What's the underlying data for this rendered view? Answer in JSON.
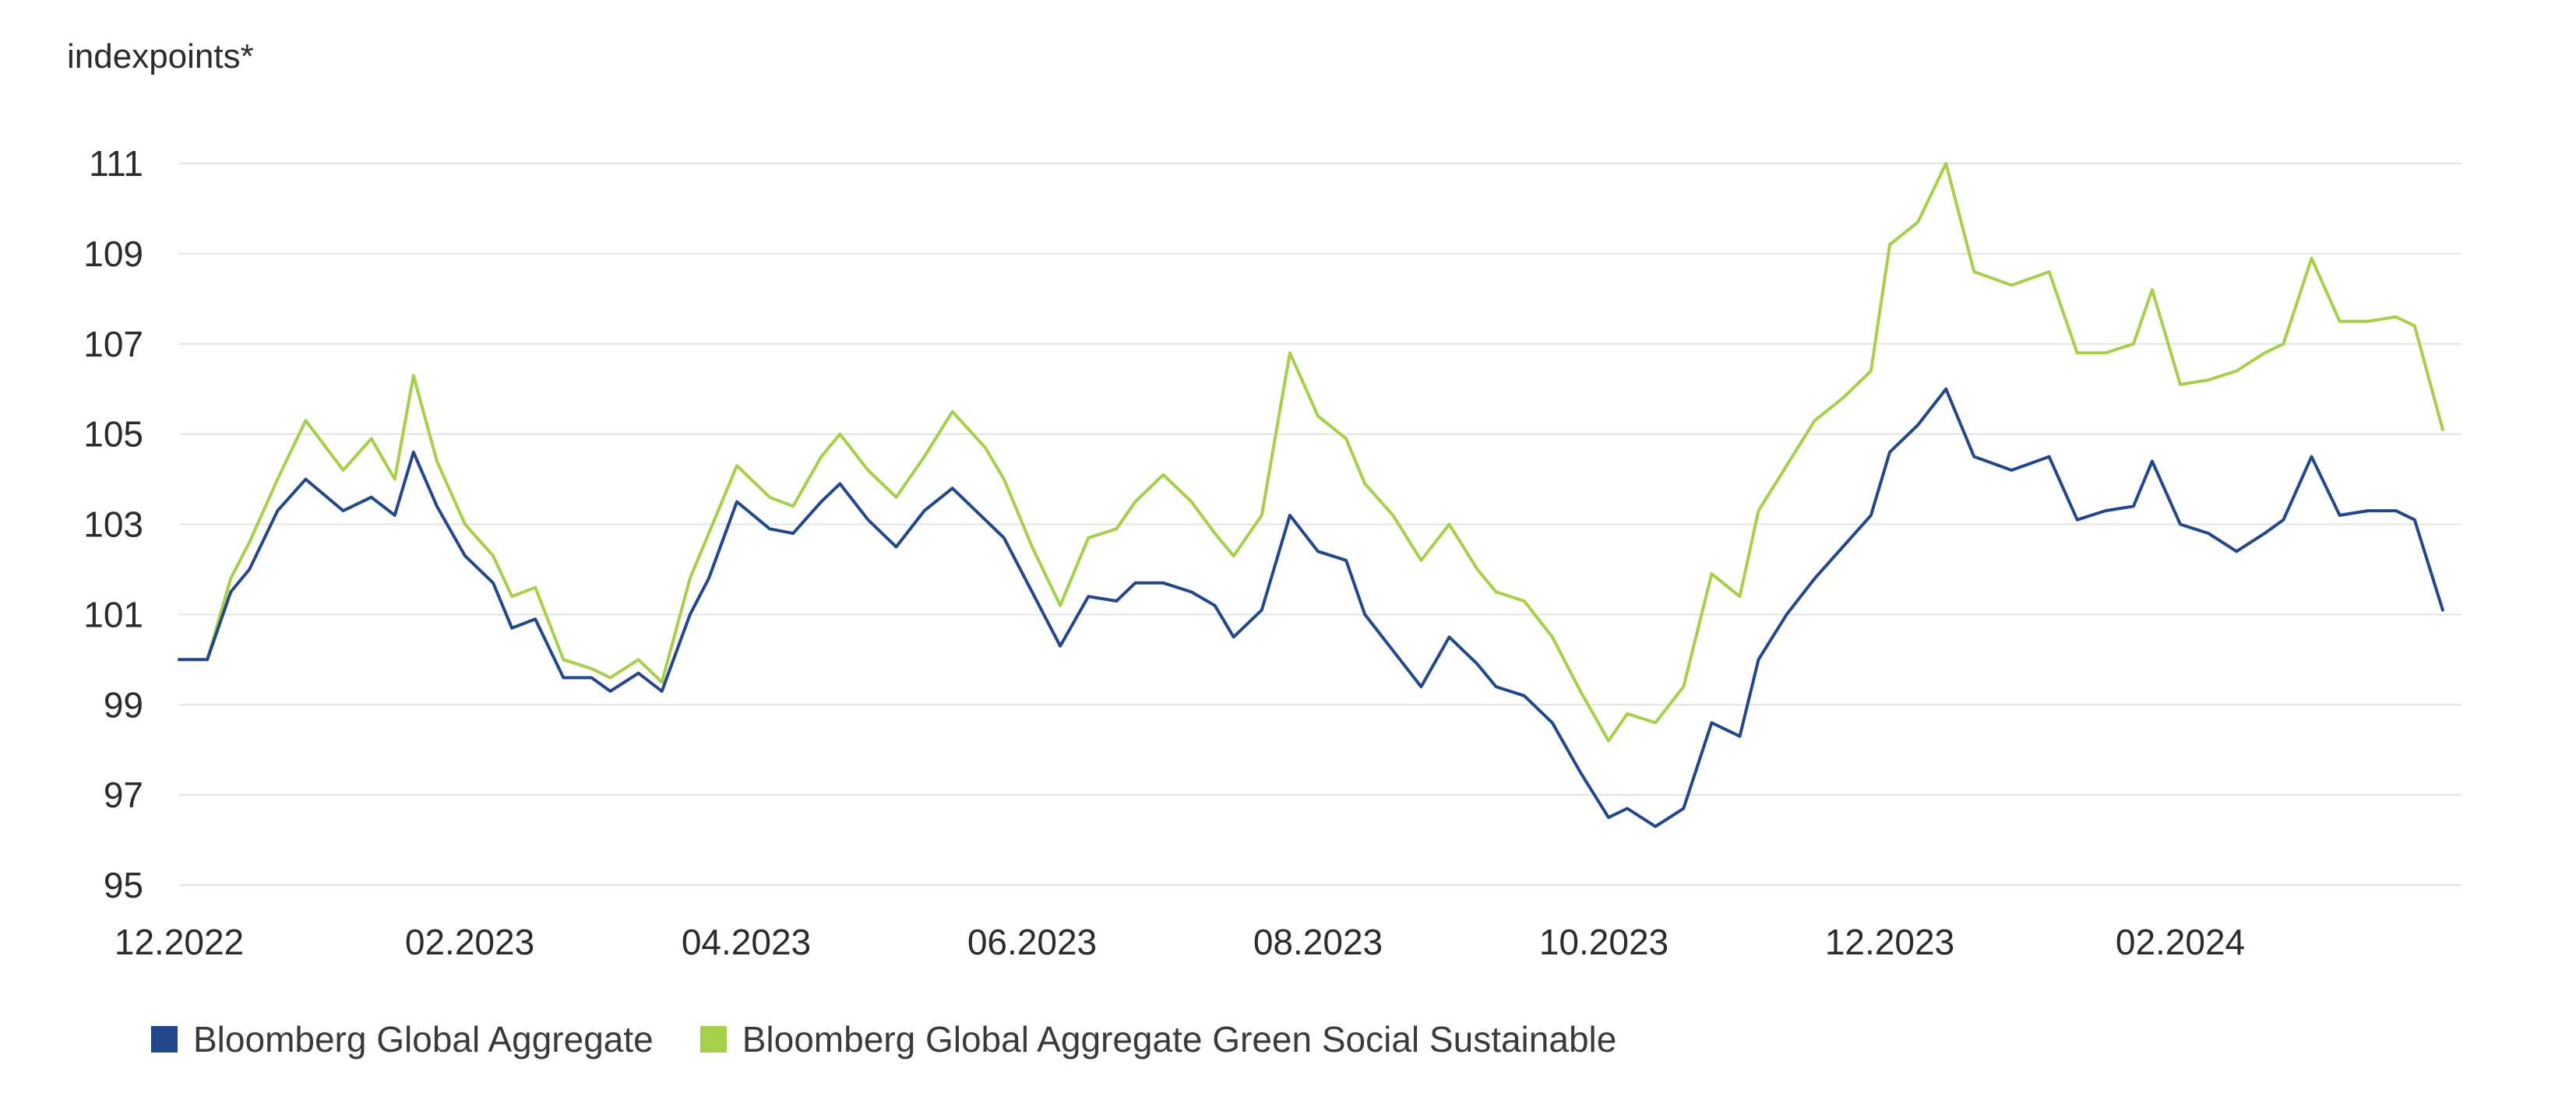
{
  "chart_data": {
    "type": "line",
    "ylabel": "indexpoints*",
    "y_ticks": [
      95,
      97,
      99,
      101,
      103,
      105,
      107,
      109,
      111
    ],
    "ylim": [
      95,
      111
    ],
    "x_tick_labels": [
      "12.2022",
      "02.2023",
      "04.2023",
      "06.2023",
      "08.2023",
      "10.2023",
      "12.2023",
      "02.2024"
    ],
    "grid": "horizontal",
    "legend_position": "bottom-left",
    "series": [
      {
        "name": "Bloomberg Global Aggregate",
        "color": "#23478b",
        "x": [
          "2022-12-01",
          "2022-12-07",
          "2022-12-12",
          "2022-12-16",
          "2022-12-22",
          "2022-12-28",
          "2023-01-05",
          "2023-01-11",
          "2023-01-16",
          "2023-01-20",
          "2023-01-25",
          "2023-01-31",
          "2023-02-06",
          "2023-02-10",
          "2023-02-15",
          "2023-02-21",
          "2023-02-27",
          "2023-03-03",
          "2023-03-09",
          "2023-03-14",
          "2023-03-20",
          "2023-03-24",
          "2023-03-30",
          "2023-04-06",
          "2023-04-11",
          "2023-04-17",
          "2023-04-21",
          "2023-04-27",
          "2023-05-03",
          "2023-05-09",
          "2023-05-15",
          "2023-05-22",
          "2023-05-26",
          "2023-06-01",
          "2023-06-07",
          "2023-06-13",
          "2023-06-19",
          "2023-06-23",
          "2023-06-29",
          "2023-07-05",
          "2023-07-10",
          "2023-07-14",
          "2023-07-20",
          "2023-07-26",
          "2023-08-01",
          "2023-08-07",
          "2023-08-11",
          "2023-08-17",
          "2023-08-23",
          "2023-08-29",
          "2023-09-04",
          "2023-09-08",
          "2023-09-14",
          "2023-09-20",
          "2023-09-26",
          "2023-10-02",
          "2023-10-06",
          "2023-10-12",
          "2023-10-18",
          "2023-10-24",
          "2023-10-30",
          "2023-11-03",
          "2023-11-09",
          "2023-11-15",
          "2023-11-21",
          "2023-11-27",
          "2023-12-01",
          "2023-12-07",
          "2023-12-13",
          "2023-12-19",
          "2023-12-27",
          "2024-01-04",
          "2024-01-10",
          "2024-01-16",
          "2024-01-22",
          "2024-01-26",
          "2024-02-01",
          "2024-02-07",
          "2024-02-13",
          "2024-02-19",
          "2024-02-23",
          "2024-02-29",
          "2024-03-06",
          "2024-03-12",
          "2024-03-18",
          "2024-03-22",
          "2024-03-28"
        ],
        "values": [
          100.0,
          100.0,
          101.5,
          102.0,
          103.3,
          104.0,
          103.3,
          103.6,
          103.2,
          104.6,
          103.4,
          102.3,
          101.7,
          100.7,
          100.9,
          99.6,
          99.6,
          99.3,
          99.7,
          99.3,
          101.0,
          101.8,
          103.5,
          102.9,
          102.8,
          103.5,
          103.9,
          103.1,
          102.5,
          103.3,
          103.8,
          103.1,
          102.7,
          101.5,
          100.3,
          101.4,
          101.3,
          101.7,
          101.7,
          101.5,
          101.2,
          100.5,
          101.1,
          103.2,
          102.4,
          102.2,
          101.0,
          100.2,
          99.4,
          100.5,
          99.9,
          99.4,
          99.2,
          98.6,
          97.5,
          96.5,
          96.7,
          96.3,
          96.7,
          98.6,
          98.3,
          100.0,
          101.0,
          101.8,
          102.5,
          103.2,
          104.6,
          105.2,
          106.0,
          104.5,
          104.2,
          104.5,
          103.1,
          103.3,
          103.4,
          104.4,
          103.0,
          102.8,
          102.4,
          102.8,
          103.1,
          104.5,
          103.2,
          103.3,
          103.3,
          103.1,
          101.1
        ],
        "min": 96.1,
        "max": 106.1
      },
      {
        "name": "Bloomberg Global Aggregate Green Social Sustainable",
        "color": "#a6cf4a",
        "x": [
          "2022-12-01",
          "2022-12-07",
          "2022-12-12",
          "2022-12-16",
          "2022-12-22",
          "2022-12-28",
          "2023-01-05",
          "2023-01-11",
          "2023-01-16",
          "2023-01-20",
          "2023-01-25",
          "2023-01-31",
          "2023-02-06",
          "2023-02-10",
          "2023-02-15",
          "2023-02-21",
          "2023-02-27",
          "2023-03-03",
          "2023-03-09",
          "2023-03-14",
          "2023-03-20",
          "2023-03-24",
          "2023-03-30",
          "2023-04-06",
          "2023-04-11",
          "2023-04-17",
          "2023-04-21",
          "2023-04-27",
          "2023-05-03",
          "2023-05-09",
          "2023-05-15",
          "2023-05-22",
          "2023-05-26",
          "2023-06-01",
          "2023-06-07",
          "2023-06-13",
          "2023-06-19",
          "2023-06-23",
          "2023-06-29",
          "2023-07-05",
          "2023-07-10",
          "2023-07-14",
          "2023-07-20",
          "2023-07-26",
          "2023-08-01",
          "2023-08-07",
          "2023-08-11",
          "2023-08-17",
          "2023-08-23",
          "2023-08-29",
          "2023-09-04",
          "2023-09-08",
          "2023-09-14",
          "2023-09-20",
          "2023-09-26",
          "2023-10-02",
          "2023-10-06",
          "2023-10-12",
          "2023-10-18",
          "2023-10-24",
          "2023-10-30",
          "2023-11-03",
          "2023-11-09",
          "2023-11-15",
          "2023-11-21",
          "2023-11-27",
          "2023-12-01",
          "2023-12-07",
          "2023-12-13",
          "2023-12-19",
          "2023-12-27",
          "2024-01-04",
          "2024-01-10",
          "2024-01-16",
          "2024-01-22",
          "2024-01-26",
          "2024-02-01",
          "2024-02-07",
          "2024-02-13",
          "2024-02-19",
          "2024-02-23",
          "2024-02-29",
          "2024-03-06",
          "2024-03-12",
          "2024-03-18",
          "2024-03-22",
          "2024-03-28"
        ],
        "values": [
          100.0,
          100.0,
          101.8,
          102.6,
          104.0,
          105.3,
          104.2,
          104.9,
          104.0,
          106.3,
          104.4,
          103.0,
          102.3,
          101.4,
          101.6,
          100.0,
          99.8,
          99.6,
          100.0,
          99.5,
          101.8,
          102.8,
          104.3,
          103.6,
          103.4,
          104.5,
          105.0,
          104.2,
          103.6,
          104.5,
          105.5,
          104.7,
          104.0,
          102.5,
          101.2,
          102.7,
          102.9,
          103.5,
          104.1,
          103.5,
          102.8,
          102.3,
          103.2,
          106.8,
          105.4,
          104.9,
          103.9,
          103.2,
          102.2,
          103.0,
          102.0,
          101.5,
          101.3,
          100.5,
          99.3,
          98.2,
          98.8,
          98.6,
          99.4,
          101.9,
          101.4,
          103.3,
          104.3,
          105.3,
          105.8,
          106.4,
          109.2,
          109.7,
          111.0,
          108.6,
          108.3,
          108.6,
          106.8,
          106.8,
          107.0,
          108.2,
          106.1,
          106.2,
          106.4,
          106.8,
          107.0,
          108.9,
          107.5,
          107.5,
          107.6,
          107.4,
          105.1
        ],
        "min": 98.2,
        "max": 111.0
      }
    ]
  },
  "legend": {
    "items": [
      {
        "label": "Bloomberg Global Aggregate",
        "color": "#23478b"
      },
      {
        "label": "Bloomberg Global Aggregate Green Social Sustainable",
        "color": "#a6cf4a"
      }
    ]
  }
}
